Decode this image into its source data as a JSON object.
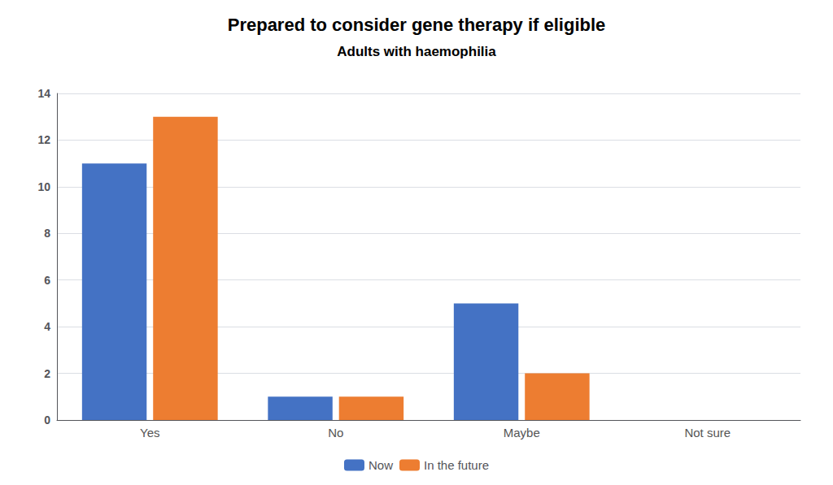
{
  "chart_data": {
    "type": "bar",
    "title": "Prepared to consider gene therapy if eligible",
    "subtitle": "Adults with haemophilia",
    "categories": [
      "Yes",
      "No",
      "Maybe",
      "Not sure"
    ],
    "series": [
      {
        "name": "Now",
        "color": "#4472C4",
        "values": [
          11,
          1,
          5,
          0
        ]
      },
      {
        "name": "In the future",
        "color": "#ED7D31",
        "values": [
          13,
          1,
          2,
          0
        ]
      }
    ],
    "ylim": [
      0,
      14
    ],
    "yticks": [
      0,
      2,
      4,
      6,
      8,
      10,
      12,
      14
    ],
    "grid": true,
    "legend": "bottom"
  }
}
